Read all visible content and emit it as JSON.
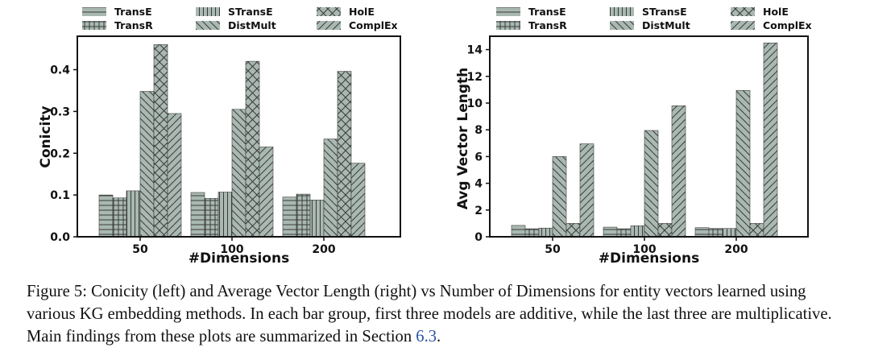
{
  "colors": {
    "bar_fill": "#a9b9b1",
    "bar_stroke": "#3c3c3c",
    "hatch": "#3a3a3a",
    "caption_ref": "#2a54a3"
  },
  "legend": {
    "entries": [
      {
        "label": "TransE",
        "pattern": "horizontal-lines"
      },
      {
        "label": "TransR",
        "pattern": "grid"
      },
      {
        "label": "STransE",
        "pattern": "vertical-lines"
      },
      {
        "label": "DistMult",
        "pattern": "back-diagonal"
      },
      {
        "label": "HolE",
        "pattern": "cross-hatch"
      },
      {
        "label": "ComplEx",
        "pattern": "forward-diagonal"
      }
    ]
  },
  "chart_data": [
    {
      "type": "bar",
      "title": "",
      "xlabel": "#Dimensions",
      "ylabel": "Conicity",
      "categories": [
        "50",
        "100",
        "200"
      ],
      "ylim": [
        0,
        0.48
      ],
      "yticks": [
        "0.0",
        "0.1",
        "0.2",
        "0.3",
        "0.4"
      ],
      "series": [
        {
          "name": "TransE",
          "values": [
            0.1,
            0.106,
            0.095
          ]
        },
        {
          "name": "TransR",
          "values": [
            0.093,
            0.092,
            0.102
          ]
        },
        {
          "name": "STransE",
          "values": [
            0.11,
            0.107,
            0.088
          ]
        },
        {
          "name": "DistMult",
          "values": [
            0.348,
            0.305,
            0.234
          ]
        },
        {
          "name": "HolE",
          "values": [
            0.46,
            0.42,
            0.396
          ]
        },
        {
          "name": "ComplEx",
          "values": [
            0.295,
            0.215,
            0.176
          ]
        }
      ]
    },
    {
      "type": "bar",
      "title": "",
      "xlabel": "#Dimensions",
      "ylabel": "Avg Vector Length",
      "categories": [
        "50",
        "100",
        "200"
      ],
      "ylim": [
        0,
        15
      ],
      "yticks": [
        "0",
        "2",
        "4",
        "6",
        "8",
        "10",
        "12",
        "14"
      ],
      "series": [
        {
          "name": "TransE",
          "values": [
            0.85,
            0.72,
            0.68
          ]
        },
        {
          "name": "TransR",
          "values": [
            0.6,
            0.6,
            0.62
          ]
        },
        {
          "name": "STransE",
          "values": [
            0.65,
            0.82,
            0.62
          ]
        },
        {
          "name": "DistMult",
          "values": [
            6.0,
            7.95,
            10.95
          ]
        },
        {
          "name": "HolE",
          "values": [
            1.0,
            1.0,
            1.0
          ]
        },
        {
          "name": "ComplEx",
          "values": [
            6.95,
            9.8,
            14.5
          ]
        }
      ]
    }
  ],
  "caption": {
    "text": "Figure 5: Conicity (left) and Average Vector Length (right) vs Number of Dimensions for entity vectors learned using various KG embedding methods. In each bar group, first three models are additive, while the last three are multiplicative. Main findings from these plots are summarized in Section ",
    "section_ref": "6.3",
    "end": "."
  }
}
